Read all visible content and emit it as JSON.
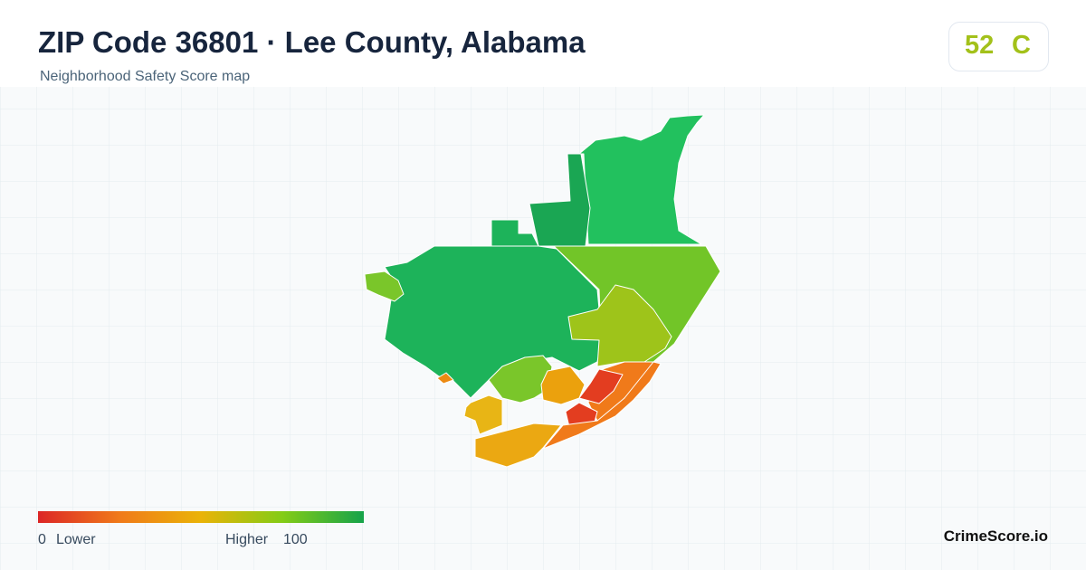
{
  "header": {
    "title": "ZIP Code 36801 · Lee County, Alabama",
    "subtitle": "Neighborhood Safety Score map"
  },
  "badge": {
    "score": 52,
    "grade": "C"
  },
  "legend": {
    "min": 0,
    "min_label": "Lower",
    "max_label": "Higher",
    "max": 100
  },
  "brand": "CrimeScore.io"
}
